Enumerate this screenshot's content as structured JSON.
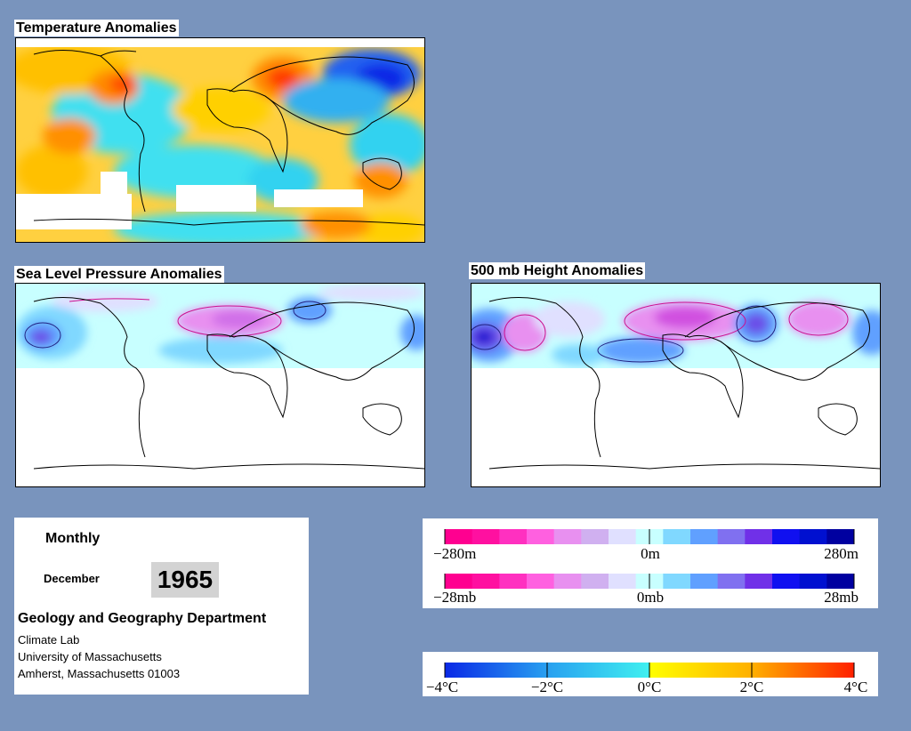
{
  "panels": {
    "temperature": {
      "title": "Temperature Anomalies"
    },
    "slp": {
      "title": "Sea Level Pressure Anomalies"
    },
    "height500": {
      "title": "500 mb Height Anomalies"
    }
  },
  "info": {
    "frequency": "Monthly",
    "month": "December",
    "year": "1965",
    "department": "Geology and Geography Department",
    "lab": "Climate Lab",
    "university": "University of Massachusetts",
    "address": "Amherst, Massachusetts 01003"
  },
  "legends": {
    "height": {
      "labels": [
        "−280m",
        "0m",
        "280m"
      ],
      "range": [
        -280,
        280
      ],
      "unit": "m"
    },
    "pressure": {
      "labels": [
        "−28mb",
        "0mb",
        "28mb"
      ],
      "range": [
        -28,
        28
      ],
      "unit": "mb"
    },
    "temperature": {
      "labels": [
        "−4°C",
        "−2°C",
        "0°C",
        "2°C",
        "4°C"
      ],
      "range": [
        -4,
        4
      ],
      "unit": "°C"
    }
  },
  "colors": {
    "background": "#7994bd",
    "height_pressure_scale": [
      "#ff0090",
      "#ff10a0",
      "#ff30c0",
      "#ff60e0",
      "#e890f0",
      "#d0b0f0",
      "#e0e0ff",
      "#c8ffff",
      "#80d8ff",
      "#60a0ff",
      "#8070f0",
      "#7030e8",
      "#1010f0",
      "#0010d0",
      "#0000a0"
    ],
    "temperature_scale": [
      "#0a28e6",
      "#1e6ef0",
      "#28a0f0",
      "#30d2f0",
      "#40f0e8",
      "#ffff00",
      "#ffd000",
      "#ffa800",
      "#ff7800",
      "#ff3000"
    ]
  }
}
